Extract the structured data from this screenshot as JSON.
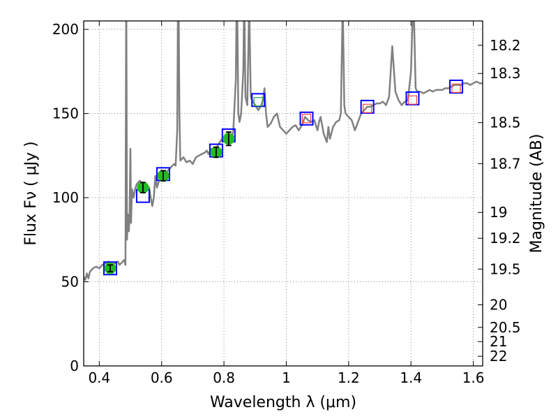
{
  "chart_data": {
    "type": "scatter",
    "title": "",
    "xlabel": "Wavelength  λ (μm)",
    "ylabel": "Flux  Fν  ( μJy )",
    "y2label": "Magnitude (AB)",
    "xlim": [
      0.35,
      1.63
    ],
    "ylim": [
      0,
      205
    ],
    "grid": true,
    "x_ticks": [
      {
        "value": 0.4,
        "label": "0.4"
      },
      {
        "value": 0.6,
        "label": "0.6"
      },
      {
        "value": 0.8,
        "label": "0.8"
      },
      {
        "value": 1.0,
        "label": "1"
      },
      {
        "value": 1.2,
        "label": "1.2"
      },
      {
        "value": 1.4,
        "label": "1.4"
      },
      {
        "value": 1.6,
        "label": "1.6"
      }
    ],
    "y_ticks": [
      {
        "value": 0,
        "label": "0"
      },
      {
        "value": 50,
        "label": "50"
      },
      {
        "value": 100,
        "label": "100"
      },
      {
        "value": 150,
        "label": "150"
      },
      {
        "value": 200,
        "label": "200"
      }
    ],
    "y2_ticks": [
      {
        "mag": 18.2,
        "label": "18.2"
      },
      {
        "mag": 18.3,
        "label": "18.3"
      },
      {
        "mag": 18.5,
        "label": "18.5"
      },
      {
        "mag": 18.7,
        "label": "18.7"
      },
      {
        "mag": 19,
        "label": "19"
      },
      {
        "mag": 19.2,
        "label": "19.2"
      },
      {
        "mag": 19.5,
        "label": "19.5"
      },
      {
        "mag": 20,
        "label": "20"
      },
      {
        "mag": 20.5,
        "label": "20.5"
      },
      {
        "mag": 21,
        "label": "21"
      },
      {
        "mag": 22,
        "label": "22"
      }
    ],
    "colors": {
      "spectrum": "#808080",
      "model_box": "#0000ff",
      "observed": "#22bb22",
      "green_box": "#33aa33",
      "red_box": "#ff4444",
      "grid": "#888888",
      "errorbar": "#000000"
    },
    "series": [
      {
        "kind": "spectrum",
        "points": [
          [
            0.35,
            53
          ],
          [
            0.355,
            51
          ],
          [
            0.36,
            55
          ],
          [
            0.365,
            52
          ],
          [
            0.37,
            56
          ],
          [
            0.38,
            58
          ],
          [
            0.39,
            59
          ],
          [
            0.4,
            58
          ],
          [
            0.41,
            60
          ],
          [
            0.42,
            61
          ],
          [
            0.43,
            62
          ],
          [
            0.44,
            60
          ],
          [
            0.45,
            61
          ],
          [
            0.46,
            62
          ],
          [
            0.465,
            60
          ],
          [
            0.47,
            61
          ],
          [
            0.475,
            62
          ],
          [
            0.48,
            63
          ],
          [
            0.484,
            60
          ],
          [
            0.486,
            205
          ],
          [
            0.487,
            205
          ],
          [
            0.489,
            75
          ],
          [
            0.492,
            90
          ],
          [
            0.495,
            80
          ],
          [
            0.497,
            88
          ],
          [
            0.5,
            129
          ],
          [
            0.502,
            85
          ],
          [
            0.505,
            105
          ],
          [
            0.51,
            100
          ],
          [
            0.515,
            105
          ],
          [
            0.52,
            108
          ],
          [
            0.53,
            110
          ],
          [
            0.535,
            109
          ],
          [
            0.54,
            106
          ],
          [
            0.55,
            108
          ],
          [
            0.56,
            106
          ],
          [
            0.565,
            100
          ],
          [
            0.57,
            95
          ],
          [
            0.575,
            100
          ],
          [
            0.58,
            113
          ],
          [
            0.585,
            106
          ],
          [
            0.59,
            109
          ],
          [
            0.595,
            112
          ],
          [
            0.6,
            113
          ],
          [
            0.61,
            114
          ],
          [
            0.62,
            116
          ],
          [
            0.63,
            118
          ],
          [
            0.64,
            120
          ],
          [
            0.645,
            119
          ],
          [
            0.65,
            140
          ],
          [
            0.652,
            205
          ],
          [
            0.655,
            205
          ],
          [
            0.657,
            150
          ],
          [
            0.66,
            122
          ],
          [
            0.67,
            124
          ],
          [
            0.68,
            121
          ],
          [
            0.69,
            122
          ],
          [
            0.7,
            120
          ],
          [
            0.71,
            124
          ],
          [
            0.72,
            125
          ],
          [
            0.73,
            126
          ],
          [
            0.74,
            127
          ],
          [
            0.745,
            128
          ],
          [
            0.75,
            126
          ],
          [
            0.76,
            129
          ],
          [
            0.765,
            124
          ],
          [
            0.77,
            127
          ],
          [
            0.78,
            131
          ],
          [
            0.79,
            134
          ],
          [
            0.8,
            136
          ],
          [
            0.81,
            138
          ],
          [
            0.82,
            137
          ],
          [
            0.825,
            135
          ],
          [
            0.83,
            140
          ],
          [
            0.838,
            170
          ],
          [
            0.84,
            205
          ],
          [
            0.843,
            205
          ],
          [
            0.846,
            150
          ],
          [
            0.85,
            145
          ],
          [
            0.855,
            150
          ],
          [
            0.862,
            175
          ],
          [
            0.864,
            205
          ],
          [
            0.866,
            205
          ],
          [
            0.869,
            160
          ],
          [
            0.875,
            155
          ],
          [
            0.88,
            205
          ],
          [
            0.882,
            205
          ],
          [
            0.886,
            160
          ],
          [
            0.89,
            158
          ],
          [
            0.9,
            155
          ],
          [
            0.91,
            152
          ],
          [
            0.92,
            155
          ],
          [
            0.925,
            158
          ],
          [
            0.93,
            165
          ],
          [
            0.935,
            150
          ],
          [
            0.94,
            142
          ],
          [
            0.95,
            144
          ],
          [
            0.96,
            148
          ],
          [
            0.97,
            150
          ],
          [
            0.98,
            142
          ],
          [
            0.99,
            140
          ],
          [
            1.0,
            138
          ],
          [
            1.01,
            140
          ],
          [
            1.02,
            142
          ],
          [
            1.03,
            143
          ],
          [
            1.04,
            140
          ],
          [
            1.05,
            143
          ],
          [
            1.06,
            148
          ],
          [
            1.07,
            146
          ],
          [
            1.08,
            145
          ],
          [
            1.09,
            146
          ],
          [
            1.1,
            140
          ],
          [
            1.105,
            145
          ],
          [
            1.11,
            148
          ],
          [
            1.12,
            138
          ],
          [
            1.13,
            133
          ],
          [
            1.135,
            142
          ],
          [
            1.14,
            135
          ],
          [
            1.15,
            142
          ],
          [
            1.16,
            145
          ],
          [
            1.17,
            146
          ],
          [
            1.175,
            150
          ],
          [
            1.18,
            205
          ],
          [
            1.182,
            205
          ],
          [
            1.186,
            155
          ],
          [
            1.19,
            150
          ],
          [
            1.2,
            148
          ],
          [
            1.21,
            146
          ],
          [
            1.22,
            140
          ],
          [
            1.23,
            145
          ],
          [
            1.24,
            150
          ],
          [
            1.25,
            152
          ],
          [
            1.26,
            154
          ],
          [
            1.27,
            154
          ],
          [
            1.28,
            155
          ],
          [
            1.29,
            156
          ],
          [
            1.3,
            156
          ],
          [
            1.31,
            157
          ],
          [
            1.32,
            155
          ],
          [
            1.33,
            160
          ],
          [
            1.34,
            190
          ],
          [
            1.35,
            163
          ],
          [
            1.36,
            158
          ],
          [
            1.37,
            155
          ],
          [
            1.38,
            157
          ],
          [
            1.39,
            158
          ],
          [
            1.4,
            175
          ],
          [
            1.405,
            205
          ],
          [
            1.41,
            205
          ],
          [
            1.415,
            165
          ],
          [
            1.42,
            163
          ],
          [
            1.43,
            163
          ],
          [
            1.44,
            162
          ],
          [
            1.45,
            163
          ],
          [
            1.46,
            164
          ],
          [
            1.47,
            163
          ],
          [
            1.48,
            164
          ],
          [
            1.49,
            164
          ],
          [
            1.5,
            164
          ],
          [
            1.51,
            165
          ],
          [
            1.52,
            165
          ],
          [
            1.53,
            166
          ],
          [
            1.54,
            167
          ],
          [
            1.55,
            167
          ],
          [
            1.56,
            167
          ],
          [
            1.57,
            168
          ],
          [
            1.58,
            168
          ],
          [
            1.59,
            167
          ],
          [
            1.6,
            168
          ],
          [
            1.61,
            169
          ],
          [
            1.62,
            168
          ],
          [
            1.63,
            168
          ]
        ]
      },
      {
        "kind": "model_box",
        "points": [
          [
            0.435,
            58
          ],
          [
            0.54,
            101
          ],
          [
            0.605,
            114
          ],
          [
            0.775,
            128
          ],
          [
            0.815,
            137
          ],
          [
            0.91,
            158
          ],
          [
            1.065,
            147
          ],
          [
            1.26,
            154
          ],
          [
            1.405,
            159
          ],
          [
            1.545,
            166
          ]
        ]
      },
      {
        "kind": "observed",
        "points": [
          {
            "x": 0.435,
            "y": 58,
            "err": 2
          },
          {
            "x": 0.54,
            "y": 106,
            "err": 3
          },
          {
            "x": 0.605,
            "y": 113,
            "err": 3
          },
          {
            "x": 0.775,
            "y": 127,
            "err": 3
          },
          {
            "x": 0.815,
            "y": 135,
            "err": 4
          }
        ]
      },
      {
        "kind": "green_box",
        "points": [
          [
            0.91,
            157
          ]
        ]
      },
      {
        "kind": "red_box",
        "points": [
          [
            1.065,
            147
          ],
          [
            1.26,
            153
          ],
          [
            1.405,
            158
          ],
          [
            1.545,
            165
          ]
        ]
      }
    ]
  }
}
